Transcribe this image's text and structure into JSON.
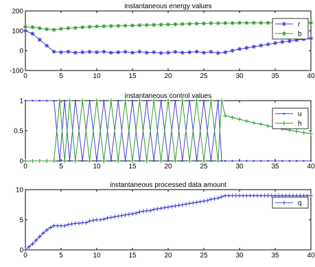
{
  "chart_data": [
    {
      "type": "line",
      "title": "instantaneous energy values",
      "xlabel": "",
      "ylabel": "",
      "xlim": [
        0,
        40
      ],
      "ylim": [
        -100,
        200
      ],
      "xticks": [
        0,
        5,
        10,
        15,
        20,
        25,
        30,
        35,
        40
      ],
      "yticks": [
        -100,
        0,
        100,
        200
      ],
      "xtick_labels": [
        "0",
        "5",
        "10",
        "15",
        "20",
        "25",
        "30",
        "35",
        "40"
      ],
      "ytick_labels": [
        "-100",
        "0",
        "100",
        "200"
      ],
      "grid": false,
      "legend_position": "top-right",
      "series": [
        {
          "name": "r",
          "color": "#3b3bd6",
          "marker": "star",
          "x": [
            0,
            1,
            2,
            3,
            4,
            5,
            6,
            7,
            8,
            9,
            10,
            11,
            12,
            13,
            14,
            15,
            16,
            17,
            18,
            19,
            20,
            21,
            22,
            23,
            24,
            25,
            26,
            27,
            28,
            29,
            30,
            31,
            32,
            33,
            34,
            35,
            36,
            37,
            38,
            39,
            40
          ],
          "values": [
            100,
            85,
            55,
            25,
            -5,
            -8,
            -5,
            -10,
            -8,
            -6,
            -8,
            -5,
            -10,
            -8,
            -6,
            -10,
            -5,
            -10,
            -8,
            -12,
            -10,
            -6,
            -10,
            -8,
            -5,
            -10,
            -6,
            -12,
            -8,
            0,
            8,
            14,
            20,
            26,
            32,
            38,
            44,
            48,
            53,
            58,
            62
          ]
        },
        {
          "name": "b",
          "color": "#2a9a2a",
          "marker": "star",
          "x": [
            0,
            1,
            2,
            3,
            4,
            5,
            6,
            7,
            8,
            9,
            10,
            11,
            12,
            13,
            14,
            15,
            16,
            17,
            18,
            19,
            20,
            21,
            22,
            23,
            24,
            25,
            26,
            27,
            28,
            29,
            30,
            31,
            32,
            33,
            34,
            35,
            36,
            37,
            38,
            39,
            40
          ],
          "values": [
            120,
            118,
            113,
            108,
            105,
            110,
            113,
            115,
            118,
            120,
            122,
            123,
            124,
            125,
            126,
            127,
            128,
            129,
            130,
            131,
            132,
            133,
            134,
            135,
            136,
            137,
            138,
            138,
            139,
            139,
            140,
            140,
            140,
            140,
            140,
            140,
            140,
            140,
            140,
            140,
            140
          ]
        }
      ]
    },
    {
      "type": "line",
      "title": "instantaneous control values",
      "xlabel": "",
      "ylabel": "",
      "xlim": [
        0,
        40
      ],
      "ylim": [
        0,
        1
      ],
      "xticks": [
        0,
        5,
        10,
        15,
        20,
        25,
        30,
        35,
        40
      ],
      "yticks": [
        0,
        0.5,
        1
      ],
      "xtick_labels": [
        "0",
        "5",
        "10",
        "15",
        "20",
        "25",
        "30",
        "35",
        "40"
      ],
      "ytick_labels": [
        "0",
        "0.5",
        "1"
      ],
      "grid": false,
      "legend_position": "top-right",
      "series": [
        {
          "name": "u",
          "color": "#3b3bd6",
          "marker": "dot",
          "x": [
            0,
            1,
            2,
            3,
            4,
            4.8,
            5.5,
            6.2,
            7,
            8,
            9,
            10,
            11,
            12,
            13,
            14,
            15,
            16,
            17,
            18,
            19,
            20,
            21,
            22,
            23,
            24,
            25,
            26,
            27,
            27.5,
            28,
            29,
            30,
            31,
            32,
            33,
            34,
            35,
            36,
            37,
            38,
            39,
            40
          ],
          "values": [
            1,
            1,
            1,
            1,
            1,
            0,
            1,
            0,
            1,
            0,
            1,
            0,
            1,
            0,
            1,
            0,
            1,
            0,
            1,
            0,
            1,
            0,
            1,
            0,
            1,
            0,
            1,
            0,
            1,
            0,
            0,
            0,
            0,
            0,
            0,
            0,
            0,
            0,
            0,
            0,
            0,
            0,
            0
          ]
        },
        {
          "name": "h",
          "color": "#2a9a2a",
          "marker": "plus",
          "x": [
            0,
            1,
            2,
            3,
            4,
            4.8,
            5.5,
            6.2,
            7,
            8,
            9,
            10,
            11,
            12,
            13,
            14,
            15,
            16,
            17,
            18,
            19,
            20,
            21,
            22,
            23,
            24,
            25,
            26,
            27,
            27.5,
            28,
            29,
            30,
            31,
            32,
            33,
            34,
            35,
            36,
            37,
            38,
            39,
            40
          ],
          "values": [
            0,
            0,
            0,
            0,
            0,
            1,
            0,
            1,
            0,
            1,
            0,
            1,
            0,
            1,
            0,
            1,
            0,
            1,
            0,
            1,
            0,
            1,
            0,
            1,
            0,
            1,
            0,
            1,
            0,
            1,
            0.75,
            0.72,
            0.69,
            0.66,
            0.63,
            0.61,
            0.58,
            0.56,
            0.53,
            0.51,
            0.49,
            0.47,
            0.45
          ]
        }
      ]
    },
    {
      "type": "line",
      "title": "instantaneous processed data amount",
      "xlabel": "",
      "ylabel": "",
      "xlim": [
        0,
        40
      ],
      "ylim": [
        0,
        10
      ],
      "xticks": [
        0,
        5,
        10,
        15,
        20,
        25,
        30,
        35,
        40
      ],
      "yticks": [
        0,
        5,
        10
      ],
      "xtick_labels": [
        "0",
        "5",
        "10",
        "15",
        "20",
        "25",
        "30",
        "35",
        "40"
      ],
      "ytick_labels": [
        "0",
        "5",
        "10"
      ],
      "grid": false,
      "legend_position": "top-right",
      "series": [
        {
          "name": "q",
          "color": "#3b3bd6",
          "marker": "plus",
          "x": [
            0,
            0.5,
            1,
            1.5,
            2,
            2.5,
            3,
            3.5,
            4,
            4.5,
            5,
            5.5,
            6,
            6.5,
            7,
            7.5,
            8,
            8.5,
            9,
            9.5,
            10,
            10.5,
            11,
            11.5,
            12,
            12.5,
            13,
            13.5,
            14,
            14.5,
            15,
            15.5,
            16,
            16.5,
            17,
            17.5,
            18,
            18.5,
            19,
            19.5,
            20,
            20.5,
            21,
            21.5,
            22,
            22.5,
            23,
            23.5,
            24,
            24.5,
            25,
            25.5,
            26,
            26.5,
            27,
            27.5,
            28,
            28.5,
            29,
            29.5,
            30,
            30.5,
            31,
            31.5,
            32,
            32.5,
            33,
            33.5,
            34,
            34.5,
            35,
            35.5,
            36,
            36.5,
            37,
            37.5,
            38,
            38.5,
            39,
            39.5,
            40
          ],
          "values": [
            0,
            0.5,
            1.0,
            1.6,
            2.2,
            2.8,
            3.3,
            3.7,
            4.0,
            4.0,
            4.0,
            4.0,
            4.2,
            4.3,
            4.4,
            4.4,
            4.5,
            4.5,
            4.8,
            4.9,
            5.0,
            5.0,
            5.1,
            5.3,
            5.4,
            5.5,
            5.6,
            5.7,
            5.8,
            5.9,
            6.0,
            6.1,
            6.3,
            6.4,
            6.5,
            6.5,
            6.7,
            6.8,
            6.9,
            7.0,
            7.1,
            7.2,
            7.3,
            7.4,
            7.5,
            7.6,
            7.7,
            7.8,
            7.9,
            8.0,
            8.1,
            8.2,
            8.4,
            8.5,
            8.6,
            8.8,
            9.0,
            9.0,
            9.0,
            9.0,
            9.0,
            9.0,
            9.0,
            9.0,
            9.0,
            9.0,
            9.0,
            9.0,
            9.0,
            9.0,
            9.0,
            9.0,
            9.0,
            9.0,
            9.0,
            9.0,
            9.0,
            9.0,
            9.0,
            9.0,
            9.0
          ]
        }
      ]
    }
  ]
}
